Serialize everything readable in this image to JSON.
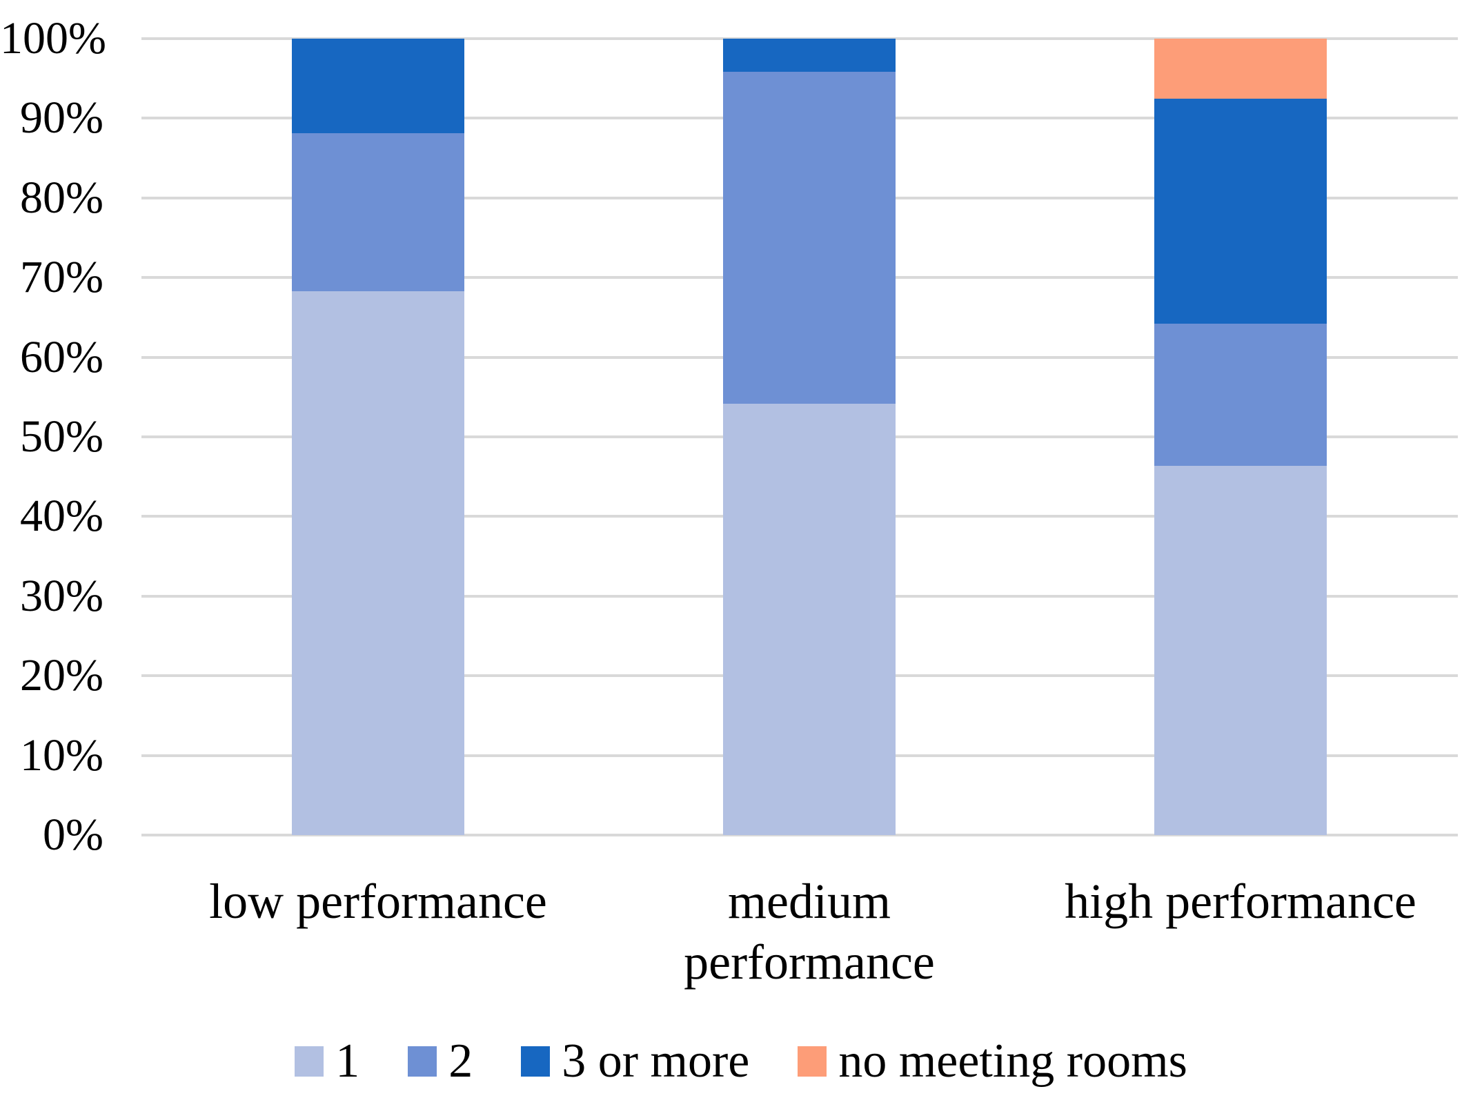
{
  "chart_data": {
    "type": "bar",
    "stacked": true,
    "percent_stacked": true,
    "title": "",
    "xlabel": "",
    "ylabel": "",
    "categories": [
      "low performance",
      "medium performance",
      "high performance"
    ],
    "category_lines": [
      [
        "low performance"
      ],
      [
        "medium",
        "performance"
      ],
      [
        "high performance"
      ]
    ],
    "series": [
      {
        "name": "1",
        "color": "#b2c0e2",
        "values": [
          68.3,
          54.2,
          46.4
        ]
      },
      {
        "name": "2",
        "color": "#6e90d4",
        "values": [
          19.8,
          41.6,
          17.8
        ]
      },
      {
        "name": "3 or more",
        "color": "#1767c1",
        "values": [
          11.9,
          4.2,
          28.3
        ]
      },
      {
        "name": "no meeting rooms",
        "color": "#fd9d78",
        "values": [
          0.0,
          0.0,
          7.5
        ]
      }
    ],
    "y_axis": {
      "min": 0,
      "max": 100,
      "tick_step": 10,
      "ticks": [
        "0%",
        "10%",
        "20%",
        "30%",
        "40%",
        "50%",
        "60%",
        "70%",
        "80%",
        "90%",
        "100%"
      ],
      "grid": true
    },
    "legend": {
      "position": "bottom",
      "labels": [
        "1",
        "2",
        "3 or more",
        "no meeting rooms"
      ]
    },
    "colors": {
      "gridline": "#d9d9d9",
      "text": "#000000",
      "background": "#ffffff"
    }
  }
}
